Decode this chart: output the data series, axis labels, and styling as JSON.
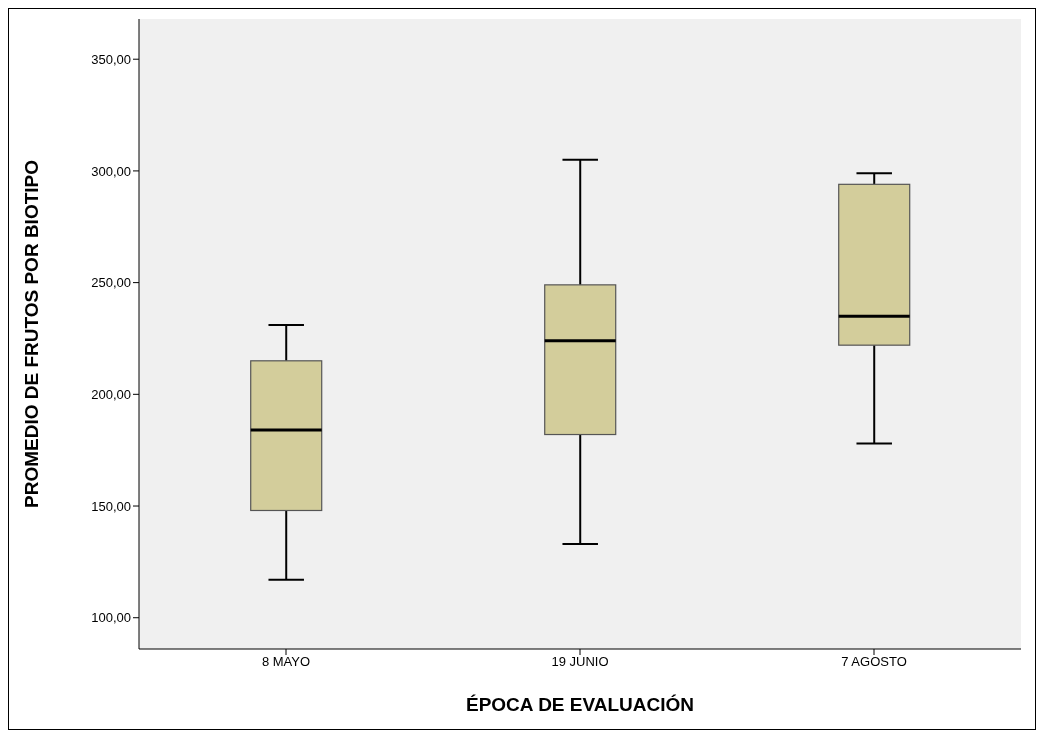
{
  "chart_data": {
    "type": "box",
    "xlabel": "ÉPOCA DE EVALUACIÓN",
    "ylabel": "PROMEDIO DE FRUTOS POR BIOTIPO",
    "categories": [
      "8 MAYO",
      "19 JUNIO",
      "7 AGOSTO"
    ],
    "color": "#d3cd9b",
    "boxes": [
      {
        "low": 117,
        "q1": 148,
        "median": 184,
        "q3": 215,
        "high": 231
      },
      {
        "low": 133,
        "q1": 182,
        "median": 224,
        "q3": 249,
        "high": 305
      },
      {
        "low": 178,
        "q1": 222,
        "median": 235,
        "q3": 294,
        "high": 299
      }
    ],
    "ylim": [
      86,
      368
    ],
    "yticks": [
      {
        "value": 100,
        "label": "100,00"
      },
      {
        "value": 150,
        "label": "150,00"
      },
      {
        "value": 200,
        "label": "200,00"
      },
      {
        "value": 250,
        "label": "250,00"
      },
      {
        "value": 300,
        "label": "300,00"
      },
      {
        "value": 350,
        "label": "350,00"
      }
    ],
    "grid": false
  }
}
